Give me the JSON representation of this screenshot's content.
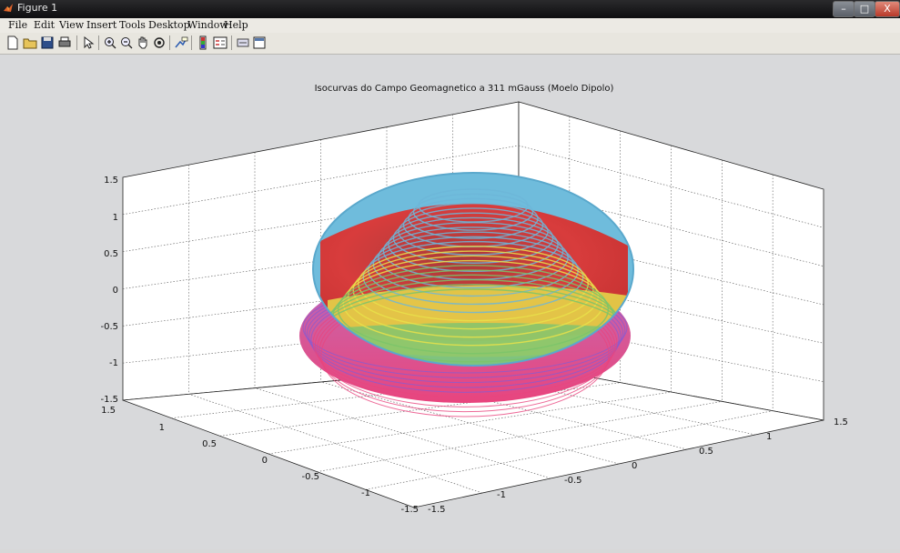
{
  "window": {
    "title": "Figure 1",
    "controls": {
      "minimize": "–",
      "maximize": "□",
      "close": "X"
    }
  },
  "menu": {
    "items": [
      {
        "label": "File"
      },
      {
        "label": "Edit"
      },
      {
        "label": "View"
      },
      {
        "label": "Insert"
      },
      {
        "label": "Tools"
      },
      {
        "label": "Desktop"
      },
      {
        "label": "Window"
      },
      {
        "label": "Help"
      }
    ]
  },
  "toolbar": {
    "icons": [
      "new-figure-icon",
      "open-file-icon",
      "save-icon",
      "print-icon",
      "select-arrow-icon",
      "zoom-in-icon",
      "zoom-out-icon",
      "pan-hand-icon",
      "rotate-3d-icon",
      "data-cursor-icon",
      "colorbar-icon",
      "legend-icon",
      "hide-plot-tools-icon",
      "show-plot-tools-icon"
    ]
  },
  "chart_data": {
    "type": "surface-3d",
    "title": "Isocurvas do Campo Geomagnetico a 311 mGauss (Moelo Dipolo)",
    "xlabel": "",
    "ylabel": "",
    "zlabel": "",
    "xlim": [
      -1.5,
      1.5
    ],
    "ylim": [
      -1.5,
      1.5
    ],
    "zlim": [
      -1.5,
      1.5
    ],
    "x_ticks": [
      "-1.5",
      "-1",
      "-0.5",
      "0",
      "0.5",
      "1",
      "1.5"
    ],
    "y_ticks": [
      "-1.5",
      "-1",
      "-0.5",
      "0",
      "0.5",
      "1",
      "1.5"
    ],
    "z_ticks": [
      "-1.5",
      "-1",
      "-0.5",
      "0",
      "0.5",
      "1",
      "1.5"
    ],
    "grid": true,
    "series_colors": [
      "#8b2a2a",
      "#d93a3a",
      "#e9e24a",
      "#7bc46a",
      "#6db6d8",
      "#8a5bd0",
      "#e8457e"
    ]
  }
}
